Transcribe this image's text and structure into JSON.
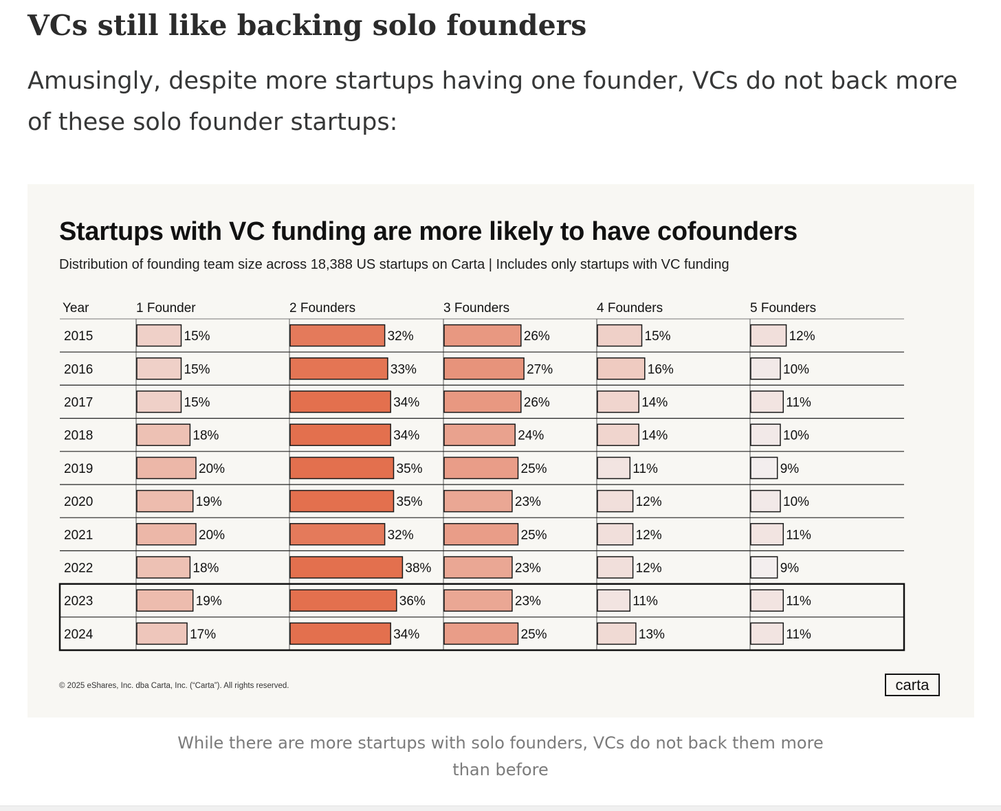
{
  "article": {
    "heading": "VCs still like backing solo founders",
    "intro": "Amusingly, despite more startups having one founder, VCs do not back more of these solo founder startups:",
    "caption": "While there are more startups with solo founders, VCs do not back them more than before"
  },
  "chart_footer": {
    "copyright": "© 2025 eShares, Inc. dba Carta, Inc. (“Carta”). All rights reserved.",
    "brand": "carta"
  },
  "colors": {
    "figure_bg": "#f8f7f3",
    "bar_stroke": "#1a1a1a",
    "bar_low": "#f3eeee",
    "bar_high": "#e3704e"
  },
  "chart_data": {
    "type": "table",
    "title": "Startups with VC funding are more likely to have cofounders",
    "subtitle": "Distribution of founding team size across 18,388 US startups on Carta | Includes only startups with VC funding",
    "row_header": "Year",
    "columns": [
      "1 Founder",
      "2 Founders",
      "3 Founders",
      "4 Founders",
      "5 Founders"
    ],
    "unit": "%",
    "rows": [
      {
        "year": "2015",
        "values": [
          15,
          32,
          26,
          15,
          12
        ]
      },
      {
        "year": "2016",
        "values": [
          15,
          33,
          27,
          16,
          10
        ]
      },
      {
        "year": "2017",
        "values": [
          15,
          34,
          26,
          14,
          11
        ]
      },
      {
        "year": "2018",
        "values": [
          18,
          34,
          24,
          14,
          10
        ]
      },
      {
        "year": "2019",
        "values": [
          20,
          35,
          25,
          11,
          9
        ]
      },
      {
        "year": "2020",
        "values": [
          19,
          35,
          23,
          12,
          10
        ]
      },
      {
        "year": "2021",
        "values": [
          20,
          32,
          25,
          12,
          11
        ]
      },
      {
        "year": "2022",
        "values": [
          18,
          38,
          23,
          12,
          9
        ]
      },
      {
        "year": "2023",
        "values": [
          19,
          36,
          23,
          11,
          11
        ]
      },
      {
        "year": "2024",
        "values": [
          17,
          34,
          25,
          13,
          11
        ]
      }
    ],
    "highlighted_years": [
      "2023",
      "2024"
    ]
  }
}
